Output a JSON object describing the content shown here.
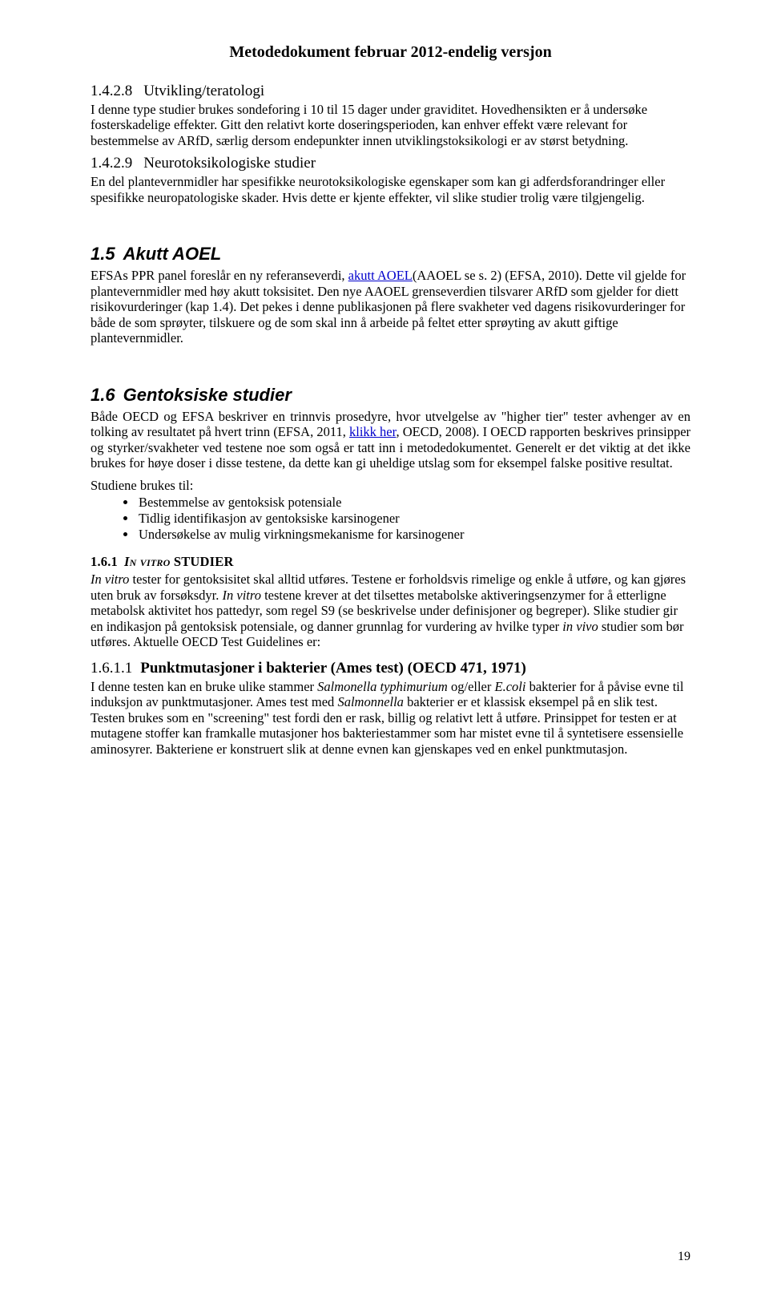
{
  "header": "Metodedokument februar 2012-endelig versjon",
  "pageNumber": "19",
  "sec_1_4_2_8": {
    "num": "1.4.2.8",
    "title": "Utvikling/teratologi",
    "p1": "I denne type studier brukes sondeforing i 10 til 15 dager under graviditet. Hovedhensikten er å undersøke fosterskadelige effekter. Gitt den relativt korte doseringsperioden, kan enhver effekt være relevant for bestemmelse av ARfD, særlig dersom endepunkter innen utviklingstoksikologi er av størst betydning."
  },
  "sec_1_4_2_9": {
    "num": "1.4.2.9",
    "title": "Neurotoksikologiske studier",
    "p1": "En del plantevernmidler har spesifikke neurotoksikologiske egenskaper som kan gi adferdsforandringer eller spesifikke neuropatologiske skader. Hvis dette er kjente effekter, vil slike studier trolig være tilgjengelig."
  },
  "sec_1_5": {
    "num": "1.5",
    "title": "Akutt AOEL",
    "p1_pre": "EFSAs PPR panel foreslår en ny referanseverdi, ",
    "link1_text": "akutt AOEL",
    "p1_post": "(AAOEL se s. 2) (EFSA, 2010). Dette vil gjelde for plantevernmidler med høy akutt toksisitet. Den nye AAOEL grenseverdien tilsvarer ARfD som gjelder for diett risikovurderinger (kap 1.4). Det pekes i denne publikasjonen på flere svakheter ved dagens risikovurderinger for både de som sprøyter, tilskuere og de som skal inn å arbeide på feltet etter sprøyting av akutt giftige plantevernmidler."
  },
  "sec_1_6": {
    "num": "1.6",
    "title": "Gentoksiske studier",
    "p1_pre": "Både OECD og EFSA beskriver en trinnvis prosedyre, hvor utvelgelse av \"higher tier\" tester avhenger av en tolking av resultatet på hvert trinn (EFSA, 2011, ",
    "link1_text": "klikk her",
    "p1_post": ", OECD, 2008). I OECD rapporten beskrives prinsipper og styrker/svakheter ved testene noe som også er tatt inn i metodedokumentet. Generelt er det viktig at det ikke brukes for høye doser i disse testene, da dette kan gi uheldige utslag som for eksempel falske positive resultat.",
    "p2": "Studiene brukes til:",
    "bullets": [
      "Bestemmelse av gentoksisk potensiale",
      "Tidlig identifikasjon av gentoksiske karsinogener",
      "Undersøkelse av mulig virkningsmekanisme for karsinogener"
    ]
  },
  "sec_1_6_1": {
    "num": "1.6.1",
    "title_sc": "In vitro",
    "title_rest": " STUDIER",
    "p1_i1": "In vitro",
    "p1_a": " tester for gentoksisitet skal alltid utføres. Testene er forholdsvis rimelige og enkle å utføre, og kan gjøres uten bruk av forsøksdyr. ",
    "p1_i2": "In vitro",
    "p1_b": " testene krever at det tilsettes metabolske aktiveringsenzymer for å etterligne metabolsk aktivitet hos pattedyr, som regel S9 (se beskrivelse under definisjoner og begreper). Slike studier gir en indikasjon på gentoksisk potensiale, og danner grunnlag for vurdering av hvilke typer ",
    "p1_i3": "in vivo",
    "p1_c": " studier som bør utføres. Aktuelle OECD Test Guidelines er:"
  },
  "sec_1_6_1_1": {
    "num": "1.6.1.1",
    "title": "Punktmutasjoner i bakterier (Ames test) (OECD 471, 1971)",
    "p1_a": "I denne testen kan en bruke ulike stammer ",
    "p1_i1": "Salmonella typhimurium",
    "p1_b": " og/eller ",
    "p1_i2": "E.coli",
    "p1_c": " bakterier for å påvise evne til induksjon av punktmutasjoner. Ames test med ",
    "p1_i3": "Salmonnella",
    "p1_d": " bakterier er et klassisk eksempel på en slik test. Testen brukes som en \"screening\" test fordi den er rask, billig og relativt lett å utføre. Prinsippet for testen er at mutagene stoffer kan framkalle mutasjoner hos bakteriestammer som har mistet evne til å syntetisere essensielle aminosyrer. Bakteriene er konstruert slik at denne evnen kan gjenskapes ved en enkel punktmutasjon."
  }
}
